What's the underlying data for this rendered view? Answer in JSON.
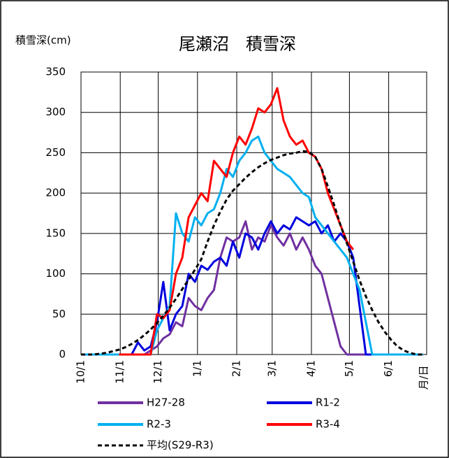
{
  "chart_data": {
    "type": "line",
    "title": "尾瀬沼　積雪深",
    "ylabel": "積雪深(cm)",
    "xlabel": "月/日",
    "x": [
      0,
      5,
      10,
      15,
      20,
      25,
      30,
      35,
      40,
      45,
      50,
      55,
      60,
      65,
      70,
      75,
      80,
      85,
      90,
      95,
      100,
      105,
      110,
      115,
      120,
      125,
      130,
      135,
      140,
      145,
      150,
      155,
      160,
      165,
      170,
      175,
      180,
      185,
      190,
      195,
      200,
      205,
      210,
      215,
      220,
      225,
      230,
      235,
      240,
      245,
      250,
      255,
      260,
      265,
      270
    ],
    "xlim": [
      0,
      273
    ],
    "xticks": [
      {
        "value": 0,
        "label": "10/1"
      },
      {
        "value": 31,
        "label": "11/1"
      },
      {
        "value": 61,
        "label": "12/1"
      },
      {
        "value": 92,
        "label": "1/1"
      },
      {
        "value": 123,
        "label": "2/1"
      },
      {
        "value": 151,
        "label": "3/1"
      },
      {
        "value": 182,
        "label": "4/1"
      },
      {
        "value": 212,
        "label": "5/1"
      },
      {
        "value": 243,
        "label": "6/1"
      }
    ],
    "ylim": [
      0,
      350
    ],
    "yticks": [
      0,
      50,
      100,
      150,
      200,
      250,
      300,
      350
    ],
    "grid": true,
    "series": [
      {
        "name": "H27-28",
        "color": "#7030a0",
        "dashed": false,
        "values": [
          0,
          0,
          0,
          0,
          0,
          0,
          0,
          0,
          0,
          0,
          0,
          5,
          10,
          20,
          25,
          40,
          35,
          70,
          60,
          55,
          70,
          80,
          120,
          145,
          140,
          145,
          165,
          130,
          145,
          140,
          160,
          145,
          135,
          150,
          130,
          145,
          130,
          110,
          100,
          70,
          40,
          10,
          0,
          0,
          0,
          0,
          0,
          0,
          0,
          0,
          0,
          0,
          0,
          0,
          0
        ]
      },
      {
        "name": "R1-2",
        "color": "#0000dd",
        "dashed": false,
        "values": [
          0,
          0,
          0,
          0,
          0,
          0,
          0,
          0,
          0,
          15,
          5,
          10,
          40,
          90,
          30,
          50,
          60,
          100,
          90,
          110,
          105,
          115,
          120,
          110,
          140,
          120,
          150,
          145,
          130,
          150,
          165,
          150,
          160,
          155,
          170,
          165,
          160,
          165,
          150,
          160,
          140,
          150,
          140,
          120,
          60,
          0,
          0,
          0,
          0,
          0,
          0,
          0,
          0,
          0,
          0
        ]
      },
      {
        "name": "R2-3",
        "color": "#00b0f0",
        "dashed": false,
        "values": [
          0,
          0,
          0,
          0,
          0,
          0,
          0,
          0,
          0,
          0,
          0,
          0,
          30,
          45,
          60,
          175,
          150,
          140,
          170,
          160,
          175,
          180,
          200,
          230,
          220,
          240,
          250,
          265,
          270,
          250,
          240,
          230,
          225,
          220,
          210,
          200,
          195,
          170,
          160,
          150,
          140,
          130,
          120,
          100,
          80,
          40,
          0,
          0,
          0,
          0,
          0,
          0,
          0,
          0,
          0
        ]
      },
      {
        "name": "R3-4",
        "color": "#ff0000",
        "dashed": false,
        "values": [
          null,
          null,
          null,
          null,
          null,
          null,
          0,
          0,
          0,
          0,
          0,
          0,
          50,
          45,
          55,
          100,
          120,
          170,
          185,
          200,
          190,
          240,
          230,
          220,
          250,
          270,
          260,
          280,
          305,
          300,
          310,
          330,
          290,
          270,
          260,
          265,
          250,
          245,
          230,
          200,
          180,
          160,
          140,
          130,
          null,
          null,
          null,
          null,
          null,
          null,
          null,
          null,
          null,
          null,
          null
        ]
      },
      {
        "name": "平均(S29-R3)",
        "color": "#000000",
        "dashed": true,
        "values": [
          0,
          0,
          0,
          1,
          2,
          4,
          6,
          9,
          13,
          18,
          24,
          31,
          39,
          48,
          58,
          69,
          81,
          93,
          105,
          118,
          140,
          160,
          177,
          192,
          203,
          211,
          219,
          226,
          232,
          237,
          241,
          244,
          247,
          249,
          250,
          252,
          251,
          245,
          230,
          208,
          185,
          160,
          138,
          115,
          92,
          72,
          55,
          40,
          28,
          18,
          10,
          5,
          2,
          0,
          0
        ]
      }
    ]
  }
}
